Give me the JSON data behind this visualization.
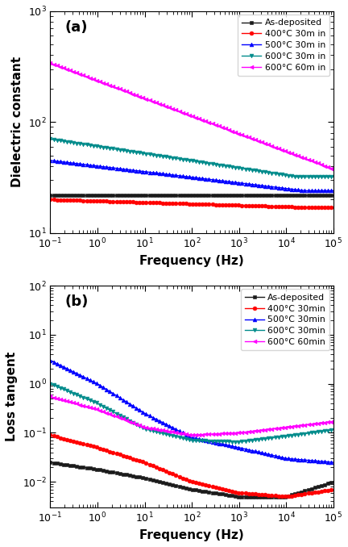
{
  "panel_a": {
    "label": "(a)",
    "ylabel": "Dielectric constant",
    "xlabel": "Frequency (Hz)",
    "xlim": [
      0.1,
      100000.0
    ],
    "ylim": [
      10,
      1000
    ],
    "series": [
      {
        "name": "As-deposited",
        "color": "#1a1a1a",
        "marker": "s",
        "y0": 22,
        "y1": 22,
        "decay": 0.05
      },
      {
        "name": "400°C 30m in",
        "color": "#ff0000",
        "marker": "o",
        "y0": 20,
        "y1": 17,
        "decay": 0.18
      },
      {
        "name": "500°C 30m in",
        "color": "#0000ff",
        "marker": "^",
        "y0": 45,
        "y1": 24,
        "decay": 0.7
      },
      {
        "name": "600°C 30m in",
        "color": "#008B8B",
        "marker": "v",
        "y0": 70,
        "y1": 32,
        "decay": 0.9
      },
      {
        "name": "600°C 60m in",
        "color": "#ff00ff",
        "marker": "<",
        "y0": 340,
        "y1": 35,
        "decay": 2.2
      }
    ]
  },
  "panel_b": {
    "label": "(b)",
    "ylabel": "Loss tangent",
    "xlabel": "Frequency (Hz)",
    "xlim": [
      0.1,
      100000.0
    ],
    "ylim": [
      0.003,
      100
    ],
    "series": [
      {
        "name": "As-deposited",
        "color": "#1a1a1a",
        "marker": "s",
        "pts": [
          [
            -1,
            0.025
          ],
          [
            0,
            0.018
          ],
          [
            1,
            0.012
          ],
          [
            2,
            0.007
          ],
          [
            3,
            0.005
          ],
          [
            4,
            0.005
          ],
          [
            5,
            0.01
          ]
        ]
      },
      {
        "name": "400°C 30min",
        "color": "#ff0000",
        "marker": "o",
        "pts": [
          [
            -1,
            0.09
          ],
          [
            0,
            0.05
          ],
          [
            1,
            0.025
          ],
          [
            2,
            0.01
          ],
          [
            3,
            0.006
          ],
          [
            4,
            0.005
          ],
          [
            5,
            0.007
          ]
        ]
      },
      {
        "name": "500°C 30min",
        "color": "#0000ff",
        "marker": "^",
        "pts": [
          [
            -1,
            3.0
          ],
          [
            0,
            1.0
          ],
          [
            1,
            0.25
          ],
          [
            2,
            0.08
          ],
          [
            3,
            0.05
          ],
          [
            4,
            0.03
          ],
          [
            5,
            0.025
          ]
        ]
      },
      {
        "name": "600°C 30min",
        "color": "#008B8B",
        "marker": "v",
        "pts": [
          [
            -1,
            1.0
          ],
          [
            0,
            0.4
          ],
          [
            1,
            0.12
          ],
          [
            2,
            0.07
          ],
          [
            3,
            0.065
          ],
          [
            4,
            0.085
          ],
          [
            5,
            0.115
          ]
        ]
      },
      {
        "name": "600°C 60min",
        "color": "#ff00ff",
        "marker": "<",
        "pts": [
          [
            -1,
            0.55
          ],
          [
            0,
            0.3
          ],
          [
            1,
            0.13
          ],
          [
            2,
            0.09
          ],
          [
            3,
            0.1
          ],
          [
            4,
            0.13
          ],
          [
            5,
            0.17
          ]
        ]
      }
    ]
  },
  "fig_bg": "#ffffff",
  "marker_size": 3.5,
  "linewidth": 1.0,
  "marker_every": 7,
  "legend_fontsize": 7.8,
  "axis_label_fontsize": 11,
  "tick_labelsize": 9,
  "panel_label_fontsize": 13
}
